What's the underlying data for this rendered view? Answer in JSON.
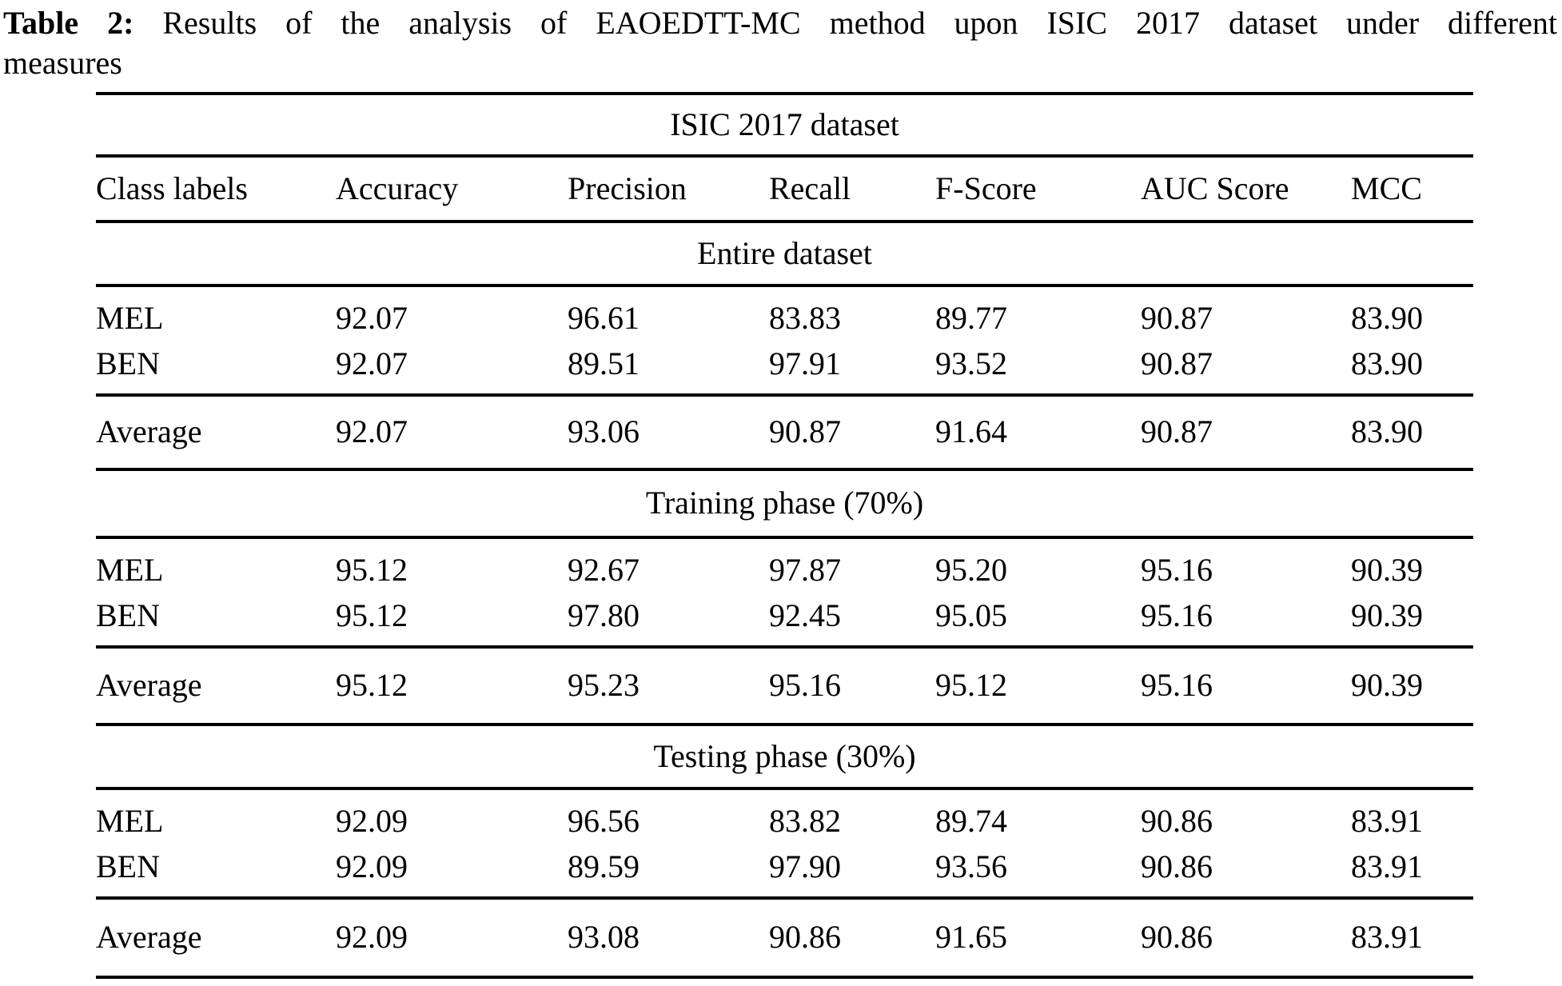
{
  "caption": {
    "label": "Table 2:",
    "line1": "Results of the analysis of EAOEDTT-MC method upon ISIC 2017 dataset under different",
    "line2": "measures"
  },
  "table": {
    "title": "ISIC 2017 dataset",
    "columns": [
      "Class labels",
      "Accuracy",
      "Precision",
      "Recall",
      "F-Score",
      "AUC Score",
      "MCC"
    ],
    "sections": [
      {
        "title": "Entire dataset",
        "rows": [
          {
            "label": "MEL",
            "values": [
              "92.07",
              "96.61",
              "83.83",
              "89.77",
              "90.87",
              "83.90"
            ]
          },
          {
            "label": "BEN",
            "values": [
              "92.07",
              "89.51",
              "97.91",
              "93.52",
              "90.87",
              "83.90"
            ]
          }
        ],
        "average": {
          "label": "Average",
          "values": [
            "92.07",
            "93.06",
            "90.87",
            "91.64",
            "90.87",
            "83.90"
          ]
        }
      },
      {
        "title": "Training phase (70%)",
        "rows": [
          {
            "label": "MEL",
            "values": [
              "95.12",
              "92.67",
              "97.87",
              "95.20",
              "95.16",
              "90.39"
            ]
          },
          {
            "label": "BEN",
            "values": [
              "95.12",
              "97.80",
              "92.45",
              "95.05",
              "95.16",
              "90.39"
            ]
          }
        ],
        "average": {
          "label": "Average",
          "values": [
            "95.12",
            "95.23",
            "95.16",
            "95.12",
            "95.16",
            "90.39"
          ]
        }
      },
      {
        "title": "Testing phase (30%)",
        "rows": [
          {
            "label": "MEL",
            "values": [
              "92.09",
              "96.56",
              "83.82",
              "89.74",
              "90.86",
              "83.91"
            ]
          },
          {
            "label": "BEN",
            "values": [
              "92.09",
              "89.59",
              "97.90",
              "93.56",
              "90.86",
              "83.91"
            ]
          }
        ],
        "average": {
          "label": "Average",
          "values": [
            "92.09",
            "93.08",
            "90.86",
            "91.65",
            "90.86",
            "83.91"
          ]
        }
      }
    ]
  }
}
